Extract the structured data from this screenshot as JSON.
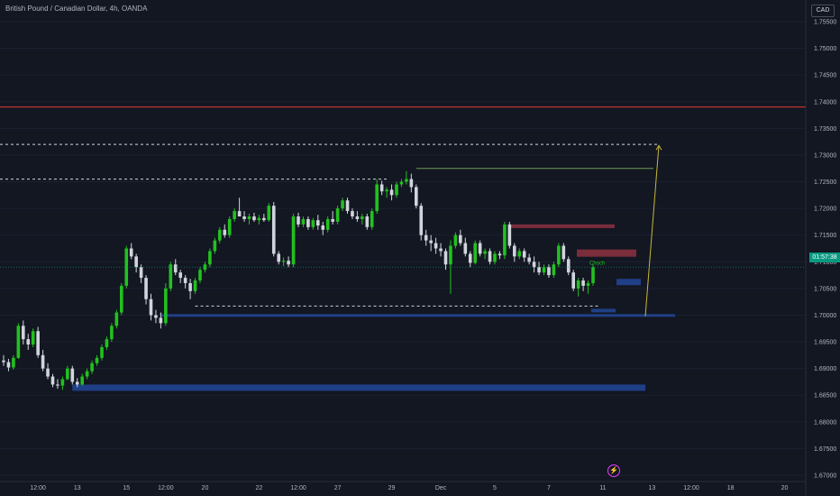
{
  "header": {
    "title": "British Pound / Canadian Dollar, 4h, OANDA",
    "currency": "CAD"
  },
  "price_badge": "01:57:38",
  "annotation": "Choch",
  "icons": {
    "alert": "lightning-icon"
  },
  "colors": {
    "background": "#131722",
    "bull": "#22c11f",
    "bear": "#d1d4dc",
    "resistance": "#e53935",
    "support_zone": "#1f3f86",
    "supply_zone": "#7b2d3c",
    "projection": "#c7b83c",
    "structure": "#6d9b52"
  },
  "chart_data": {
    "type": "candlestick",
    "title": "British Pound / Canadian Dollar, 4h, OANDA",
    "ylim": [
      1.6675,
      1.7575
    ],
    "y_ticks": [
      "1.75500",
      "1.75000",
      "1.74500",
      "1.74000",
      "1.73500",
      "1.73000",
      "1.72500",
      "1.72000",
      "1.71500",
      "1.71000",
      "1.70500",
      "1.70000",
      "1.69500",
      "1.69000",
      "1.68500",
      "1.68000",
      "1.67500",
      "1.67000"
    ],
    "x_ticks": [
      {
        "label": "12:00",
        "bar": 7
      },
      {
        "label": "13",
        "bar": 15
      },
      {
        "label": "15",
        "bar": 25
      },
      {
        "label": "12:00",
        "bar": 33
      },
      {
        "label": "20",
        "bar": 41
      },
      {
        "label": "22",
        "bar": 52
      },
      {
        "label": "12:00",
        "bar": 60
      },
      {
        "label": "27",
        "bar": 68
      },
      {
        "label": "29",
        "bar": 79
      },
      {
        "label": "Dec",
        "bar": 89
      },
      {
        "label": "5",
        "bar": 100
      },
      {
        "label": "7",
        "bar": 111
      },
      {
        "label": "11",
        "bar": 122
      },
      {
        "label": "13",
        "bar": 132
      },
      {
        "label": "12:00",
        "bar": 140
      },
      {
        "label": "18",
        "bar": 148
      },
      {
        "label": "20",
        "bar": 159
      }
    ],
    "candles": [
      [
        1.6915,
        1.6925,
        1.6905,
        1.6912
      ],
      [
        1.6912,
        1.6918,
        1.6895,
        1.6902
      ],
      [
        1.6902,
        1.6925,
        1.6898,
        1.692
      ],
      [
        1.692,
        1.6985,
        1.6918,
        1.698
      ],
      [
        1.698,
        1.699,
        1.6945,
        1.6955
      ],
      [
        1.6955,
        1.6965,
        1.6935,
        1.6945
      ],
      [
        1.6945,
        1.6975,
        1.694,
        1.697
      ],
      [
        1.697,
        1.6978,
        1.692,
        1.6925
      ],
      [
        1.6925,
        1.6935,
        1.6895,
        1.69
      ],
      [
        1.69,
        1.691,
        1.688,
        1.6885
      ],
      [
        1.6885,
        1.689,
        1.6865,
        1.687
      ],
      [
        1.687,
        1.688,
        1.6862,
        1.6868
      ],
      [
        1.6868,
        1.6885,
        1.686,
        1.688
      ],
      [
        1.688,
        1.6905,
        1.6878,
        1.69
      ],
      [
        1.69,
        1.6905,
        1.687,
        1.6875
      ],
      [
        1.6875,
        1.6882,
        1.6865,
        1.687
      ],
      [
        1.687,
        1.689,
        1.6868,
        1.6885
      ],
      [
        1.6885,
        1.69,
        1.688,
        1.6895
      ],
      [
        1.6895,
        1.6915,
        1.689,
        1.691
      ],
      [
        1.691,
        1.6925,
        1.6905,
        1.692
      ],
      [
        1.692,
        1.6945,
        1.6915,
        1.694
      ],
      [
        1.694,
        1.696,
        1.6935,
        1.6955
      ],
      [
        1.6955,
        1.6985,
        1.695,
        1.698
      ],
      [
        1.698,
        1.701,
        1.6975,
        1.7005
      ],
      [
        1.7005,
        1.706,
        1.7,
        1.7055
      ],
      [
        1.7055,
        1.713,
        1.705,
        1.7125
      ],
      [
        1.7125,
        1.7135,
        1.7105,
        1.711
      ],
      [
        1.711,
        1.7115,
        1.708,
        1.709
      ],
      [
        1.709,
        1.7095,
        1.706,
        1.707
      ],
      [
        1.707,
        1.7075,
        1.702,
        1.703
      ],
      [
        1.703,
        1.704,
        1.699,
        1.7
      ],
      [
        1.7,
        1.701,
        1.6985,
        1.6995
      ],
      [
        1.6995,
        1.7005,
        1.6975,
        1.6985
      ],
      [
        1.6985,
        1.706,
        1.698,
        1.705
      ],
      [
        1.705,
        1.71,
        1.7045,
        1.7095
      ],
      [
        1.7095,
        1.7105,
        1.7075,
        1.708
      ],
      [
        1.708,
        1.7085,
        1.706,
        1.707
      ],
      [
        1.707,
        1.7075,
        1.705,
        1.706
      ],
      [
        1.706,
        1.7068,
        1.703,
        1.7045
      ],
      [
        1.7045,
        1.707,
        1.704,
        1.7065
      ],
      [
        1.7065,
        1.709,
        1.706,
        1.7085
      ],
      [
        1.7085,
        1.71,
        1.708,
        1.7095
      ],
      [
        1.7095,
        1.7125,
        1.709,
        1.712
      ],
      [
        1.712,
        1.7145,
        1.7115,
        1.714
      ],
      [
        1.714,
        1.7165,
        1.7135,
        1.716
      ],
      [
        1.716,
        1.717,
        1.7145,
        1.715
      ],
      [
        1.715,
        1.7185,
        1.7145,
        1.718
      ],
      [
        1.718,
        1.72,
        1.7175,
        1.7195
      ],
      [
        1.7195,
        1.722,
        1.7185,
        1.7185
      ],
      [
        1.7185,
        1.7195,
        1.7175,
        1.718
      ],
      [
        1.718,
        1.719,
        1.717,
        1.7185
      ],
      [
        1.7185,
        1.7192,
        1.7175,
        1.7178
      ],
      [
        1.7178,
        1.7188,
        1.717,
        1.7182
      ],
      [
        1.7182,
        1.719,
        1.7175,
        1.7178
      ],
      [
        1.7178,
        1.721,
        1.7175,
        1.7205
      ],
      [
        1.7205,
        1.7212,
        1.711,
        1.7115
      ],
      [
        1.7115,
        1.712,
        1.7095,
        1.71
      ],
      [
        1.71,
        1.7108,
        1.7092,
        1.7102
      ],
      [
        1.7102,
        1.711,
        1.709,
        1.7095
      ],
      [
        1.7095,
        1.719,
        1.709,
        1.7185
      ],
      [
        1.7185,
        1.7192,
        1.7165,
        1.717
      ],
      [
        1.717,
        1.7185,
        1.7165,
        1.718
      ],
      [
        1.718,
        1.7185,
        1.716,
        1.7165
      ],
      [
        1.7165,
        1.7182,
        1.716,
        1.7178
      ],
      [
        1.7178,
        1.7188,
        1.716,
        1.7168
      ],
      [
        1.7168,
        1.7175,
        1.715,
        1.716
      ],
      [
        1.716,
        1.7185,
        1.7155,
        1.718
      ],
      [
        1.718,
        1.7195,
        1.717,
        1.7175
      ],
      [
        1.7175,
        1.7205,
        1.717,
        1.72
      ],
      [
        1.72,
        1.722,
        1.7195,
        1.7215
      ],
      [
        1.7215,
        1.722,
        1.719,
        1.7195
      ],
      [
        1.7195,
        1.72,
        1.718,
        1.7185
      ],
      [
        1.7185,
        1.7195,
        1.7175,
        1.718
      ],
      [
        1.718,
        1.719,
        1.717,
        1.7185
      ],
      [
        1.7185,
        1.719,
        1.716,
        1.7165
      ],
      [
        1.7165,
        1.72,
        1.716,
        1.7195
      ],
      [
        1.7195,
        1.7255,
        1.719,
        1.7245
      ],
      [
        1.7245,
        1.7252,
        1.7225,
        1.7232
      ],
      [
        1.7232,
        1.724,
        1.722,
        1.7235
      ],
      [
        1.7235,
        1.7245,
        1.7215,
        1.7225
      ],
      [
        1.7225,
        1.725,
        1.722,
        1.7245
      ],
      [
        1.7245,
        1.7255,
        1.724,
        1.725
      ],
      [
        1.725,
        1.727,
        1.7245,
        1.7255
      ],
      [
        1.7255,
        1.7265,
        1.723,
        1.724
      ],
      [
        1.724,
        1.7245,
        1.72,
        1.7205
      ],
      [
        1.7205,
        1.721,
        1.714,
        1.715
      ],
      [
        1.715,
        1.716,
        1.713,
        1.714
      ],
      [
        1.714,
        1.715,
        1.712,
        1.7135
      ],
      [
        1.7135,
        1.7145,
        1.7115,
        1.7125
      ],
      [
        1.7125,
        1.7135,
        1.711,
        1.712
      ],
      [
        1.712,
        1.7125,
        1.7085,
        1.7095
      ],
      [
        1.7095,
        1.714,
        1.704,
        1.713
      ],
      [
        1.713,
        1.7155,
        1.7125,
        1.715
      ],
      [
        1.715,
        1.716,
        1.713,
        1.7135
      ],
      [
        1.7135,
        1.7145,
        1.711,
        1.7115
      ],
      [
        1.7115,
        1.712,
        1.709,
        1.7098
      ],
      [
        1.7098,
        1.714,
        1.7095,
        1.7135
      ],
      [
        1.7135,
        1.714,
        1.711,
        1.7115
      ],
      [
        1.7115,
        1.7125,
        1.7105,
        1.712
      ],
      [
        1.712,
        1.7125,
        1.7095,
        1.71
      ],
      [
        1.71,
        1.712,
        1.7095,
        1.7115
      ],
      [
        1.7115,
        1.712,
        1.7105,
        1.7112
      ],
      [
        1.7112,
        1.7175,
        1.7105,
        1.717
      ],
      [
        1.717,
        1.7175,
        1.7125,
        1.713
      ],
      [
        1.713,
        1.7135,
        1.71,
        1.711
      ],
      [
        1.711,
        1.7125,
        1.7105,
        1.712
      ],
      [
        1.712,
        1.7125,
        1.71,
        1.7108
      ],
      [
        1.7108,
        1.7115,
        1.7095,
        1.71
      ],
      [
        1.71,
        1.711,
        1.708,
        1.709
      ],
      [
        1.709,
        1.71,
        1.7075,
        1.708
      ],
      [
        1.708,
        1.7095,
        1.7075,
        1.709
      ],
      [
        1.709,
        1.7095,
        1.707,
        1.7075
      ],
      [
        1.7075,
        1.71,
        1.707,
        1.7095
      ],
      [
        1.7095,
        1.7135,
        1.709,
        1.713
      ],
      [
        1.713,
        1.7135,
        1.71,
        1.7105
      ],
      [
        1.7105,
        1.711,
        1.7075,
        1.708
      ],
      [
        1.708,
        1.7085,
        1.7045,
        1.705
      ],
      [
        1.705,
        1.707,
        1.7035,
        1.7065
      ],
      [
        1.7065,
        1.707,
        1.7045,
        1.7055
      ],
      [
        1.7055,
        1.7065,
        1.704,
        1.706
      ],
      [
        1.706,
        1.7095,
        1.7055,
        1.709
      ]
    ]
  }
}
